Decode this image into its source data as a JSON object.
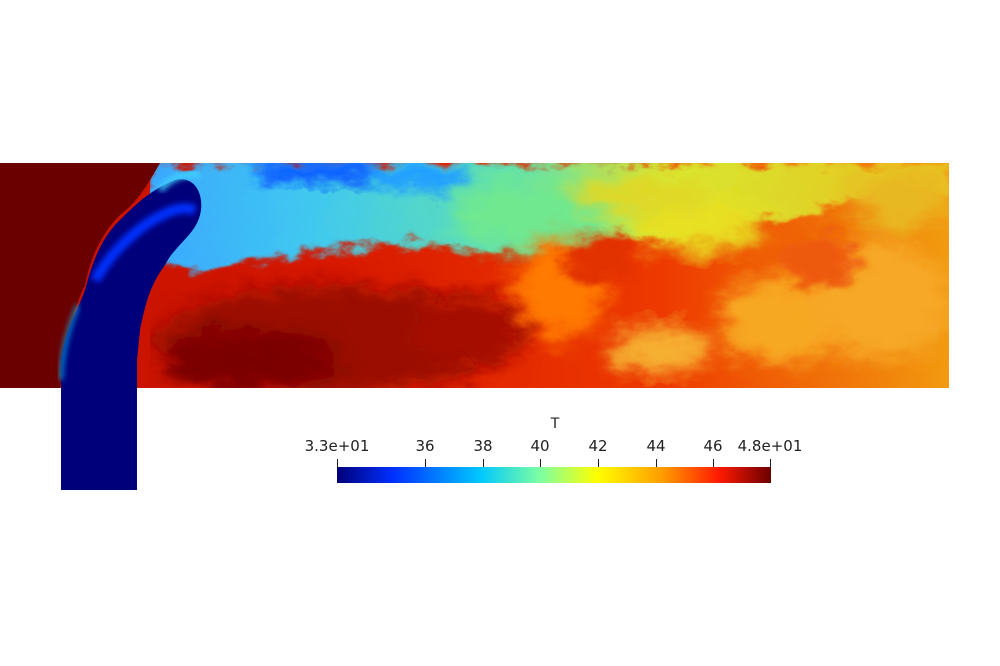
{
  "legend": {
    "title": "T",
    "min_label": "3.3e+01",
    "max_label": "4.8e+01",
    "ticks": [
      "36",
      "38",
      "40",
      "42",
      "44",
      "46"
    ],
    "range": [
      33,
      48
    ]
  },
  "colormap": [
    "#00007a",
    "#0030ff",
    "#00c8ff",
    "#7fffa0",
    "#ffff00",
    "#ff9c00",
    "#ff1a00",
    "#6b0000"
  ]
}
